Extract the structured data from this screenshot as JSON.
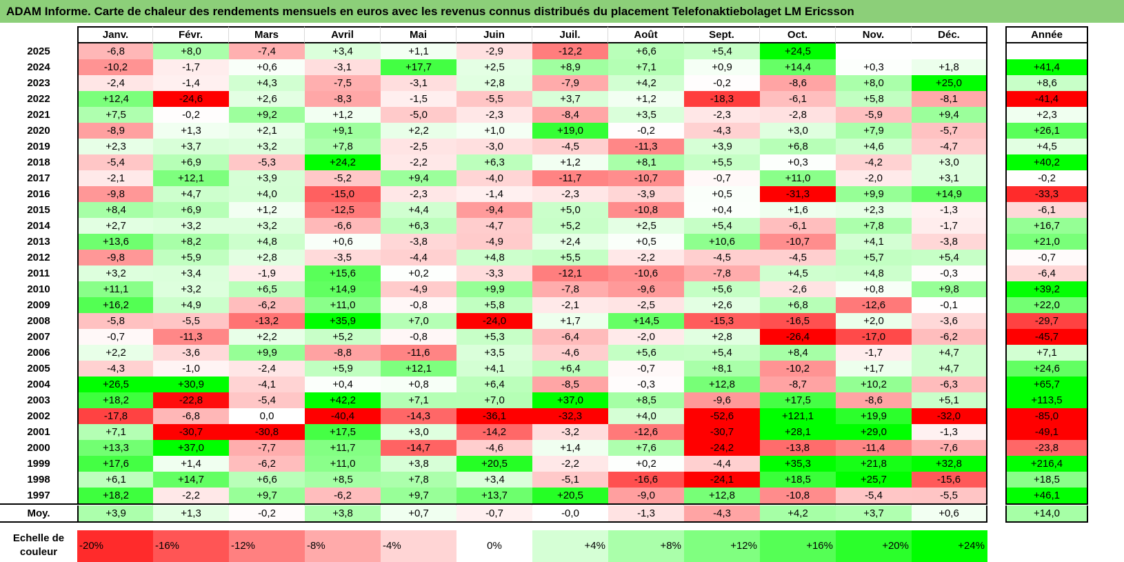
{
  "title": "ADAM Informe. Carte de chaleur des rendements mensuels en euros avec les revenus connus distribués du placement Telefonaktiebolaget LM Ericsson",
  "chart_data": {
    "type": "heatmap",
    "title": "ADAM Informe. Carte de chaleur des rendements mensuels en euros avec les revenus connus distribués du placement Telefonaktiebolaget LM Ericsson",
    "columns": [
      "Janv.",
      "Févr.",
      "Mars",
      "Avril",
      "Mai",
      "Juin",
      "Juil.",
      "Août",
      "Sept.",
      "Oct.",
      "Nov.",
      "Déc."
    ],
    "year_column_label": "Année",
    "average_row_label": "Moy.",
    "rows": [
      {
        "year": "2025",
        "values": [
          "-6,8",
          "+8,0",
          "-7,4",
          "+3,4",
          "+1,1",
          "-2,9",
          "-12,2",
          "+6,6",
          "+5,4",
          "+24,5",
          "",
          ""
        ],
        "annual": ""
      },
      {
        "year": "2024",
        "values": [
          "-10,2",
          "-1,7",
          "+0,6",
          "-3,1",
          "+17,7",
          "+2,5",
          "+8,9",
          "+7,1",
          "+0,9",
          "+14,4",
          "+0,3",
          "+1,8"
        ],
        "annual": "+41,4"
      },
      {
        "year": "2023",
        "values": [
          "-2,4",
          "-1,4",
          "+4,3",
          "-7,5",
          "-3,1",
          "+2,8",
          "-7,9",
          "+4,2",
          "-0,2",
          "-8,6",
          "+8,0",
          "+25,0"
        ],
        "annual": "+8,6"
      },
      {
        "year": "2022",
        "values": [
          "+12,4",
          "-24,6",
          "+2,6",
          "-8,3",
          "-1,5",
          "-5,5",
          "+3,7",
          "+1,2",
          "-18,3",
          "-6,1",
          "+5,8",
          "-8,1"
        ],
        "annual": "-41,4"
      },
      {
        "year": "2021",
        "values": [
          "+7,5",
          "-0,2",
          "+9,2",
          "+1,2",
          "-5,0",
          "-2,3",
          "-8,4",
          "+3,5",
          "-2,3",
          "-2,8",
          "-5,9",
          "+9,4"
        ],
        "annual": "+2,3"
      },
      {
        "year": "2020",
        "values": [
          "-8,9",
          "+1,3",
          "+2,1",
          "+9,1",
          "+2,2",
          "+1,0",
          "+19,0",
          "-0,2",
          "-4,3",
          "+3,0",
          "+7,9",
          "-5,7"
        ],
        "annual": "+26,1"
      },
      {
        "year": "2019",
        "values": [
          "+2,3",
          "+3,7",
          "+3,2",
          "+7,8",
          "-2,5",
          "-3,0",
          "-4,5",
          "-11,3",
          "+3,9",
          "+6,8",
          "+4,6",
          "-4,7"
        ],
        "annual": "+4,5"
      },
      {
        "year": "2018",
        "values": [
          "-5,4",
          "+6,9",
          "-5,3",
          "+24,2",
          "-2,2",
          "+6,3",
          "+1,2",
          "+8,1",
          "+5,5",
          "+0,3",
          "-4,2",
          "+3,0"
        ],
        "annual": "+40,2"
      },
      {
        "year": "2017",
        "values": [
          "-2,1",
          "+12,1",
          "+3,9",
          "-5,2",
          "+9,4",
          "-4,0",
          "-11,7",
          "-10,7",
          "-0,7",
          "+11,0",
          "-2,0",
          "+3,1"
        ],
        "annual": "-0,2"
      },
      {
        "year": "2016",
        "values": [
          "-9,8",
          "+4,7",
          "+4,0",
          "-15,0",
          "-2,3",
          "-1,4",
          "-2,3",
          "-3,9",
          "+0,5",
          "-31,3",
          "+9,9",
          "+14,9"
        ],
        "annual": "-33,3"
      },
      {
        "year": "2015",
        "values": [
          "+8,4",
          "+6,9",
          "+1,2",
          "-12,5",
          "+4,4",
          "-9,4",
          "+5,0",
          "-10,8",
          "+0,4",
          "+1,6",
          "+2,3",
          "-1,3"
        ],
        "annual": "-6,1"
      },
      {
        "year": "2014",
        "values": [
          "+2,7",
          "+3,2",
          "+3,2",
          "-6,6",
          "+6,3",
          "-4,7",
          "+5,2",
          "+2,5",
          "+5,4",
          "-6,1",
          "+7,8",
          "-1,7"
        ],
        "annual": "+16,7"
      },
      {
        "year": "2013",
        "values": [
          "+13,6",
          "+8,2",
          "+4,8",
          "+0,6",
          "-3,8",
          "-4,9",
          "+2,4",
          "+0,5",
          "+10,6",
          "-10,7",
          "+4,1",
          "-3,8"
        ],
        "annual": "+21,0"
      },
      {
        "year": "2012",
        "values": [
          "-9,8",
          "+5,9",
          "+2,8",
          "-3,5",
          "-4,4",
          "+4,8",
          "+5,5",
          "-2,2",
          "-4,5",
          "-4,5",
          "+5,7",
          "+5,4"
        ],
        "annual": "-0,7"
      },
      {
        "year": "2011",
        "values": [
          "+3,2",
          "+3,4",
          "-1,9",
          "+15,6",
          "+0,2",
          "-3,3",
          "-12,1",
          "-10,6",
          "-7,8",
          "+4,5",
          "+4,8",
          "-0,3"
        ],
        "annual": "-6,4"
      },
      {
        "year": "2010",
        "values": [
          "+11,1",
          "+3,2",
          "+6,5",
          "+14,9",
          "-4,9",
          "+9,9",
          "-7,8",
          "-9,6",
          "+5,6",
          "-2,6",
          "+0,8",
          "+9,8"
        ],
        "annual": "+39,2"
      },
      {
        "year": "2009",
        "values": [
          "+16,2",
          "+4,9",
          "-6,2",
          "+11,0",
          "-0,8",
          "+5,8",
          "-2,1",
          "-2,5",
          "+2,6",
          "+6,8",
          "-12,6",
          "-0,1"
        ],
        "annual": "+22,0"
      },
      {
        "year": "2008",
        "values": [
          "-5,8",
          "-5,5",
          "-13,2",
          "+35,9",
          "+7,0",
          "-24,0",
          "+1,7",
          "+14,5",
          "-15,3",
          "-16,5",
          "+2,0",
          "-3,6"
        ],
        "annual": "-29,7"
      },
      {
        "year": "2007",
        "values": [
          "-0,7",
          "-11,3",
          "+2,2",
          "+5,2",
          "-0,8",
          "+5,3",
          "-6,4",
          "-2,0",
          "+2,8",
          "-26,4",
          "-17,0",
          "-6,2"
        ],
        "annual": "-45,7"
      },
      {
        "year": "2006",
        "values": [
          "+2,2",
          "-3,6",
          "+9,9",
          "-8,8",
          "-11,6",
          "+3,5",
          "-4,6",
          "+5,6",
          "+5,4",
          "+8,4",
          "-1,7",
          "+4,7"
        ],
        "annual": "+7,1"
      },
      {
        "year": "2005",
        "values": [
          "-4,3",
          "-1,0",
          "-2,4",
          "+5,9",
          "+12,1",
          "+4,1",
          "+6,4",
          "-0,7",
          "+8,1",
          "-10,2",
          "+1,7",
          "+4,7"
        ],
        "annual": "+24,6"
      },
      {
        "year": "2004",
        "values": [
          "+26,5",
          "+30,9",
          "-4,1",
          "+0,4",
          "+0,8",
          "+6,4",
          "-8,5",
          "-0,3",
          "+12,8",
          "-8,7",
          "+10,2",
          "-6,3"
        ],
        "annual": "+65,7"
      },
      {
        "year": "2003",
        "values": [
          "+18,2",
          "-22,8",
          "-5,4",
          "+42,2",
          "+7,1",
          "+7,0",
          "+37,0",
          "+8,5",
          "-9,6",
          "+17,5",
          "-8,6",
          "+5,1"
        ],
        "annual": "+113,5"
      },
      {
        "year": "2002",
        "values": [
          "-17,8",
          "-6,8",
          "0,0",
          "-40,4",
          "-14,3",
          "-36,1",
          "-32,3",
          "+4,0",
          "-52,6",
          "+121,1",
          "+19,9",
          "-32,0"
        ],
        "annual": "-85,0"
      },
      {
        "year": "2001",
        "values": [
          "+7,1",
          "-30,7",
          "-30,8",
          "+17,5",
          "+3,0",
          "-14,2",
          "-3,2",
          "-12,6",
          "-30,7",
          "+28,1",
          "+29,0",
          "-1,3"
        ],
        "annual": "-49,1"
      },
      {
        "year": "2000",
        "values": [
          "+13,3",
          "+37,0",
          "-7,7",
          "+11,7",
          "-14,7",
          "-4,6",
          "+1,4",
          "+7,6",
          "-24,2",
          "-13,8",
          "-11,4",
          "-7,6"
        ],
        "annual": "-23,8"
      },
      {
        "year": "1999",
        "values": [
          "+17,6",
          "+1,4",
          "-6,2",
          "+11,0",
          "+3,8",
          "+20,5",
          "-2,2",
          "+0,2",
          "-4,4",
          "+35,3",
          "+21,8",
          "+32,8"
        ],
        "annual": "+216,4"
      },
      {
        "year": "1998",
        "values": [
          "+6,1",
          "+14,7",
          "+6,6",
          "+8,5",
          "+7,8",
          "+3,4",
          "-5,1",
          "-16,6",
          "-24,1",
          "+18,5",
          "+25,7",
          "-15,6"
        ],
        "annual": "+18,5"
      },
      {
        "year": "1997",
        "values": [
          "+18,2",
          "-2,2",
          "+9,7",
          "-6,2",
          "+9,7",
          "+13,7",
          "+20,5",
          "-9,0",
          "+12,8",
          "-10,8",
          "-5,4",
          "-5,5"
        ],
        "annual": "+46,1"
      }
    ],
    "average": {
      "values": [
        "+3,9",
        "+1,3",
        "-0,2",
        "+3,8",
        "+0,7",
        "-0,7",
        "-0,0",
        "-1,3",
        "-4,3",
        "+4,2",
        "+3,7",
        "+0,6"
      ],
      "annual": "+14,0"
    },
    "legend": {
      "label": "Echelle de couleur",
      "items": [
        {
          "label": "-20%",
          "value": -20,
          "align": "left"
        },
        {
          "label": "-16%",
          "value": -16,
          "align": "left"
        },
        {
          "label": "-12%",
          "value": -12,
          "align": "left"
        },
        {
          "label": "-8%",
          "value": -8,
          "align": "left"
        },
        {
          "label": "-4%",
          "value": -4,
          "align": "left"
        },
        {
          "label": "0%",
          "value": 0,
          "align": "center"
        },
        {
          "label": "+4%",
          "value": 4,
          "align": "right"
        },
        {
          "label": "+8%",
          "value": 8,
          "align": "right"
        },
        {
          "label": "+12%",
          "value": 12,
          "align": "right"
        },
        {
          "label": "+16%",
          "value": 16,
          "align": "right"
        },
        {
          "label": "+20%",
          "value": 20,
          "align": "right"
        },
        {
          "label": "+24%",
          "value": 24,
          "align": "right"
        }
      ]
    },
    "color_scale": {
      "negative": "#ff0000",
      "neutral": "#ffffff",
      "positive": "#00ff00",
      "monthly_limit": 24,
      "annual_limit": 40
    },
    "title_bar_color": "#8ccf79"
  }
}
